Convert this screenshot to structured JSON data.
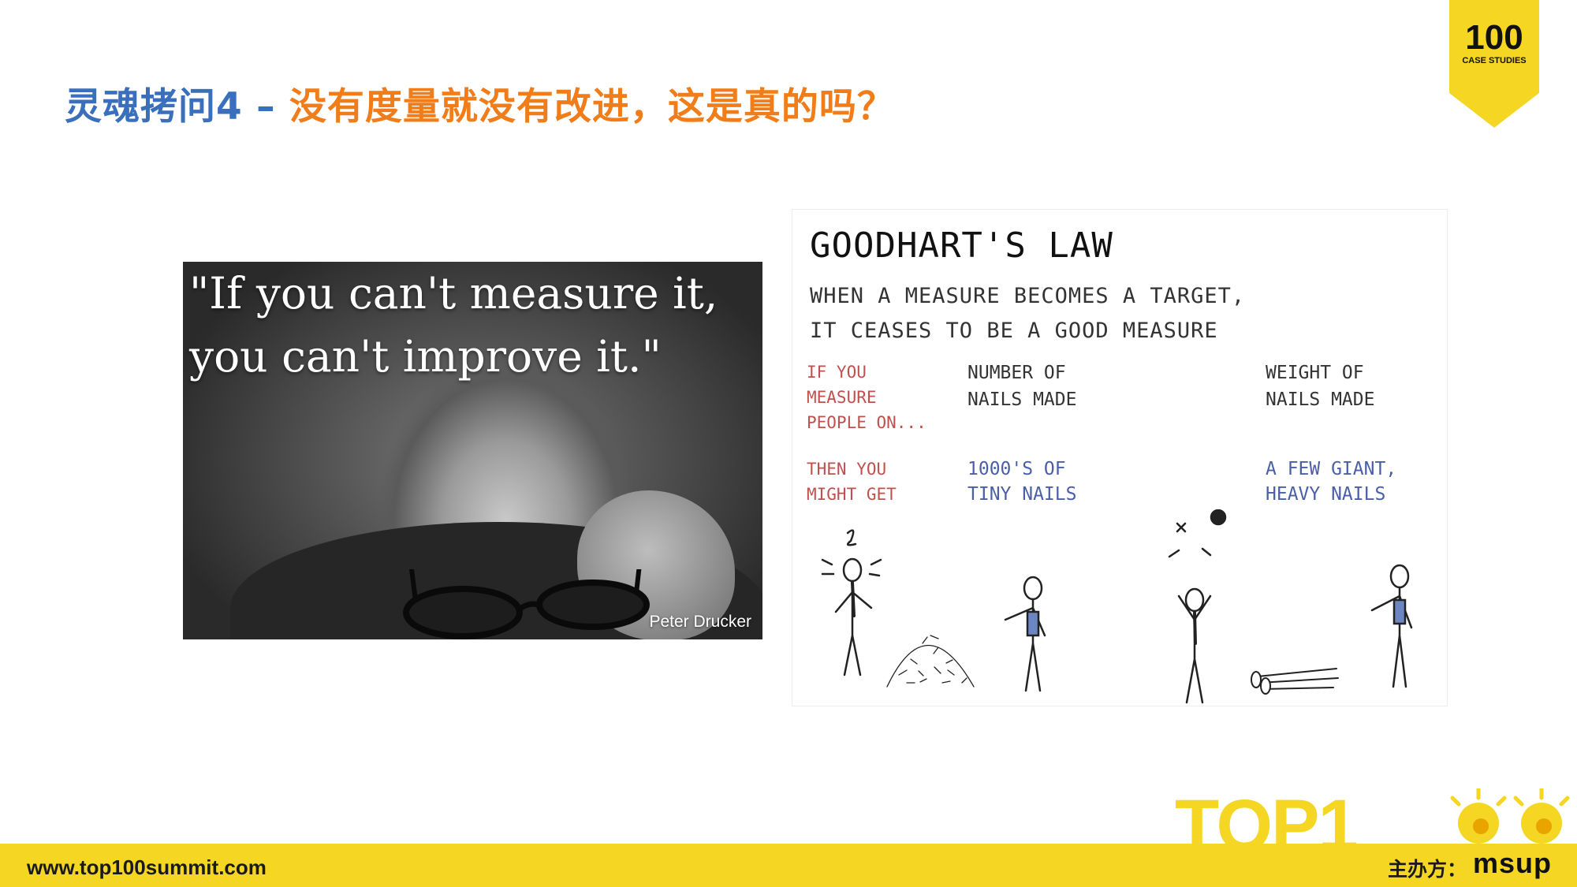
{
  "header": {
    "title_prefix": "灵魂拷问4 – ",
    "title_main": "没有度量就没有改进，这是真的吗？"
  },
  "badge": {
    "number": "100",
    "subtitle": "CASE STUDIES"
  },
  "quote_card": {
    "quote_line1": "\"If you can't measure it,",
    "quote_line2": "you can't improve it.\"",
    "author": "Peter Drucker"
  },
  "goodhart": {
    "title": "GOODHART'S LAW",
    "subtitle_line1": "WHEN A MEASURE BECOMES A TARGET,",
    "subtitle_line2": "IT CEASES TO BE A GOOD MEASURE",
    "row1_label": [
      "IF YOU",
      "MEASURE",
      "PEOPLE ON..."
    ],
    "row1_col1": [
      "NUMBER OF",
      "NAILS MADE"
    ],
    "row1_col2": [
      "WEIGHT OF",
      "NAILS MADE"
    ],
    "row2_label": [
      "THEN YOU",
      "MIGHT GET"
    ],
    "row2_col1": [
      "1000'S OF",
      "TINY NAILS"
    ],
    "row2_col2": [
      "A FEW GIANT,",
      "HEAVY NAILS"
    ]
  },
  "footer": {
    "url": "www.top100summit.com",
    "organizer_label": "主办方：",
    "organizer_name": "msup",
    "logo_text": "TOP1"
  },
  "colors": {
    "blue": "#3a6fbd",
    "orange": "#f07d1a",
    "yellow": "#f5d623"
  }
}
